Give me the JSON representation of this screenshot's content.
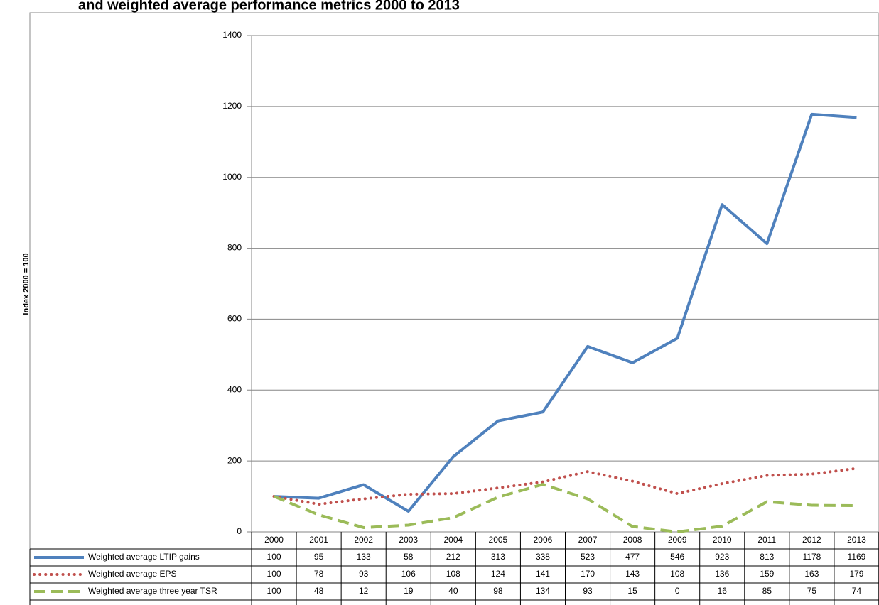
{
  "chart_data": {
    "type": "line",
    "title": "and weighted average performance metrics 2000 to 2013",
    "y_label": "Index 2000 = 100",
    "categories": [
      "2000",
      "2001",
      "2002",
      "2003",
      "2004",
      "2005",
      "2006",
      "2007",
      "2008",
      "2009",
      "2010",
      "2011",
      "2012",
      "2013"
    ],
    "series": [
      {
        "name": "Weighted average LTIP gains",
        "color": "#4f81bd",
        "style": "solid",
        "values": [
          100,
          95,
          133,
          58,
          212,
          313,
          338,
          523,
          477,
          546,
          923,
          813,
          1178,
          1169
        ]
      },
      {
        "name": "Weighted average EPS",
        "color": "#c0504d",
        "style": "dotted",
        "values": [
          100,
          78,
          93,
          106,
          108,
          124,
          141,
          170,
          143,
          108,
          136,
          159,
          163,
          179
        ]
      },
      {
        "name": "Weighted average three year TSR",
        "color": "#9bbb59",
        "style": "dashed",
        "values": [
          100,
          48,
          12,
          19,
          40,
          98,
          134,
          93,
          15,
          0,
          16,
          85,
          75,
          74
        ]
      }
    ],
    "ylim": [
      0,
      1400
    ],
    "yticks": [
      0,
      200,
      400,
      600,
      800,
      1000,
      1200,
      1400
    ],
    "grid": true
  }
}
